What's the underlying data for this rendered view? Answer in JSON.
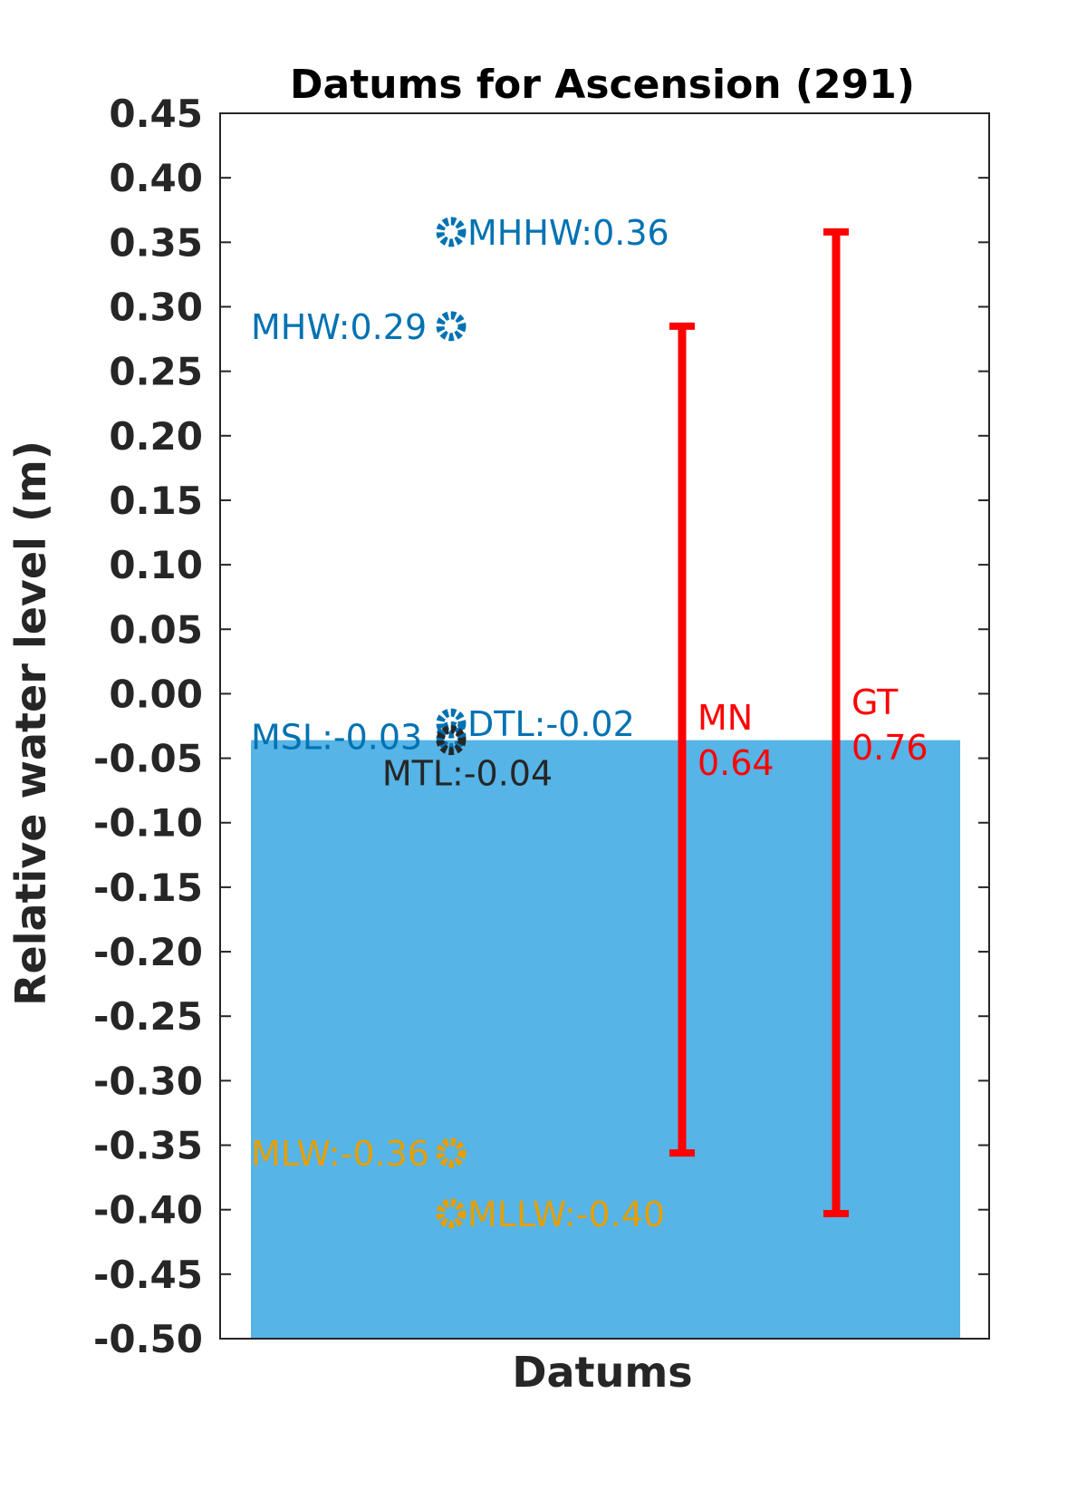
{
  "chart_data": {
    "type": "bar",
    "title": "Datums for Ascension (291)",
    "xlabel": "Datums",
    "ylabel": "Relative water level (m)",
    "ylim": [
      -0.5,
      0.45
    ],
    "ytick_labels": [
      "0.45",
      "0.40",
      "0.35",
      "0.30",
      "0.25",
      "0.20",
      "0.15",
      "0.10",
      "0.05",
      "0.00",
      "-0.05",
      "-0.10",
      "-0.15",
      "-0.20",
      "-0.25",
      "-0.30",
      "-0.35",
      "-0.40",
      "-0.45",
      "-0.50"
    ],
    "yticks": [
      0.45,
      0.4,
      0.35,
      0.3,
      0.25,
      0.2,
      0.15,
      0.1,
      0.05,
      0.0,
      -0.05,
      -0.1,
      -0.15,
      -0.2,
      -0.25,
      -0.3,
      -0.35,
      -0.4,
      -0.45,
      -0.5
    ],
    "grid": false,
    "bar": {
      "value": -0.036,
      "color": "#56B4E6"
    },
    "datums": [
      {
        "name": "MHHW",
        "value": 0.358,
        "label": "MHHW:0.36",
        "color": "#0072B2",
        "label_side": "right"
      },
      {
        "name": "MHW",
        "value": 0.285,
        "label": "MHW:0.29",
        "color": "#0072B2",
        "label_side": "left"
      },
      {
        "name": "DTL",
        "value": -0.023,
        "label": "DTL:-0.02",
        "color": "#0072B2",
        "label_side": "right"
      },
      {
        "name": "MSL",
        "value": -0.033,
        "label": "MSL:-0.03",
        "color": "#0072B2",
        "label_side": "left"
      },
      {
        "name": "MTL",
        "value": -0.036,
        "label": "MTL:-0.04",
        "color": "#262626",
        "label_side": "below"
      },
      {
        "name": "MLW",
        "value": -0.356,
        "label": "MLW:-0.36",
        "color": "#E69F00",
        "label_side": "left"
      },
      {
        "name": "MLLW",
        "value": -0.403,
        "label": "MLLW:-0.40",
        "color": "#E69F00",
        "label_side": "right"
      }
    ],
    "ranges": [
      {
        "name": "MN",
        "low": -0.356,
        "high": 0.285,
        "label": "MN",
        "value_label": "0.64",
        "color": "#FF0000"
      },
      {
        "name": "GT",
        "low": -0.403,
        "high": 0.358,
        "label": "GT",
        "value_label": "0.76",
        "color": "#FF0000"
      }
    ]
  }
}
